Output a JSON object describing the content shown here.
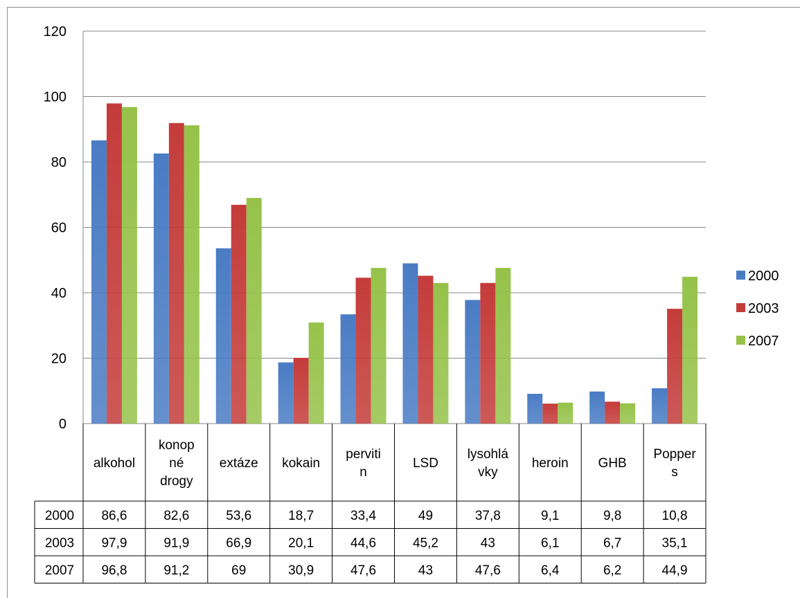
{
  "chart_data": {
    "type": "bar",
    "title": "",
    "xlabel": "",
    "ylabel": "",
    "ylim": [
      0,
      120
    ],
    "yticks": [
      0,
      20,
      40,
      60,
      80,
      100,
      120
    ],
    "grid": true,
    "legend_position": "right",
    "data_table": true,
    "categories": [
      [
        "alkohol"
      ],
      [
        "konop",
        "né",
        "drogy"
      ],
      [
        "extáze"
      ],
      [
        "kokain"
      ],
      [
        "perviti",
        "n"
      ],
      [
        "LSD"
      ],
      [
        "lysohlá",
        "vky"
      ],
      [
        "heroin"
      ],
      [
        "GHB"
      ],
      [
        "Popper",
        "s"
      ]
    ],
    "series": [
      {
        "name": "2000",
        "color": "#4a7cc4",
        "values": [
          86.6,
          82.6,
          53.6,
          18.7,
          33.4,
          49,
          37.8,
          9.1,
          9.8,
          10.8
        ],
        "labels": [
          "86,6",
          "82,6",
          "53,6",
          "18,7",
          "33,4",
          "49",
          "37,8",
          "9,1",
          "9,8",
          "10,8"
        ]
      },
      {
        "name": "2003",
        "color": "#c43c3a",
        "values": [
          97.9,
          91.9,
          66.9,
          20.1,
          44.6,
          45.2,
          43,
          6.1,
          6.7,
          35.1
        ],
        "labels": [
          "97,9",
          "91,9",
          "66,9",
          "20,1",
          "44,6",
          "45,2",
          "43",
          "6,1",
          "6,7",
          "35,1"
        ]
      },
      {
        "name": "2007",
        "color": "#96c24a",
        "values": [
          96.8,
          91.2,
          69,
          30.9,
          47.6,
          43,
          47.6,
          6.4,
          6.2,
          44.9
        ],
        "labels": [
          "96,8",
          "91,2",
          "69",
          "30,9",
          "47,6",
          "43",
          "47,6",
          "6,4",
          "6,2",
          "44,9"
        ]
      }
    ]
  }
}
